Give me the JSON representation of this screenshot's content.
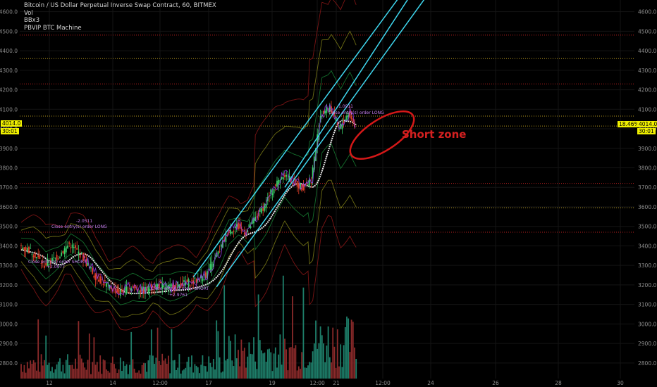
{
  "legend": {
    "symbol": "Bitcoin / US Dollar Perpetual Inverse Swap Contract, 60, BITMEX",
    "vol": "Vol",
    "bb": "BBx3",
    "strategy": "PBVIP BTC Machine"
  },
  "price_tag_left": "4014.0",
  "countdown_left": "30:01",
  "price_tag_right": "4014.0",
  "pct_tag_right": "18.46%",
  "countdown_right": "30:01",
  "annotation": "Short zone",
  "colors": {
    "up": "#3ad16a",
    "down": "#e2402a",
    "channel": "#3fd8f0",
    "zone": "#d41818",
    "tag": "#f0f000"
  },
  "chart_data": {
    "type": "candlestick",
    "title": "Bitcoin / US Dollar Perpetual Inverse Swap Contract, 60, BITMEX",
    "y_ticks": [
      2800,
      2900,
      3000,
      3100,
      3200,
      3300,
      3400,
      3500,
      3600,
      3700,
      3800,
      3900,
      4000,
      4100,
      4200,
      4300,
      4400,
      4500,
      4600
    ],
    "ylim": [
      2720,
      4660
    ],
    "x_ticks": [
      "12",
      "14",
      "12:00",
      "17",
      "19",
      "12:00",
      "21",
      "12:00",
      "24",
      "26",
      "28",
      "30"
    ],
    "trade_labels": [
      "-2.0511",
      "Close entry(s) order LONG",
      "Close entry(s) order SHORT",
      "+2.0977",
      "Close entry(s) order SHORT",
      "+2.9761",
      "Close entry(s) order LONG",
      "1.0911"
    ],
    "price_path": [
      [
        0,
        3400
      ],
      [
        8,
        3370
      ],
      [
        16,
        3300
      ],
      [
        24,
        3340
      ],
      [
        32,
        3410
      ],
      [
        40,
        3350
      ],
      [
        48,
        3250
      ],
      [
        56,
        3200
      ],
      [
        64,
        3160
      ],
      [
        72,
        3190
      ],
      [
        80,
        3170
      ],
      [
        88,
        3200
      ],
      [
        96,
        3185
      ],
      [
        104,
        3205
      ],
      [
        112,
        3215
      ],
      [
        120,
        3250
      ],
      [
        128,
        3360
      ],
      [
        134,
        3470
      ],
      [
        140,
        3500
      ],
      [
        146,
        3470
      ],
      [
        152,
        3540
      ],
      [
        158,
        3610
      ],
      [
        164,
        3700
      ],
      [
        170,
        3770
      ],
      [
        176,
        3730
      ],
      [
        182,
        3700
      ],
      [
        188,
        3740
      ],
      [
        194,
        4070
      ],
      [
        200,
        4110
      ],
      [
        206,
        4000
      ],
      [
        212,
        4080
      ],
      [
        216,
        4014
      ]
    ],
    "channel_lines": [
      {
        "x1": 111,
        "p1": 3240,
        "x2": 248,
        "p2": 4720
      },
      {
        "x1": 126,
        "p1": 3190,
        "x2": 266,
        "p2": 4730
      },
      {
        "x1": 170,
        "p1": 3700,
        "x2": 254,
        "p2": 4720
      }
    ],
    "horizontal_levels": [
      {
        "price": 4480,
        "color": "#b41e1e"
      },
      {
        "price": 4360,
        "color": "#b4961e"
      },
      {
        "price": 4230,
        "color": "#b41e1e"
      },
      {
        "price": 4065,
        "color": "#b4961e"
      },
      {
        "price": 4014,
        "color": "#b4961e"
      },
      {
        "price": 3720,
        "color": "#b41e1e"
      },
      {
        "price": 3595,
        "color": "#b4961e"
      },
      {
        "price": 3470,
        "color": "#b41e1e"
      }
    ]
  }
}
